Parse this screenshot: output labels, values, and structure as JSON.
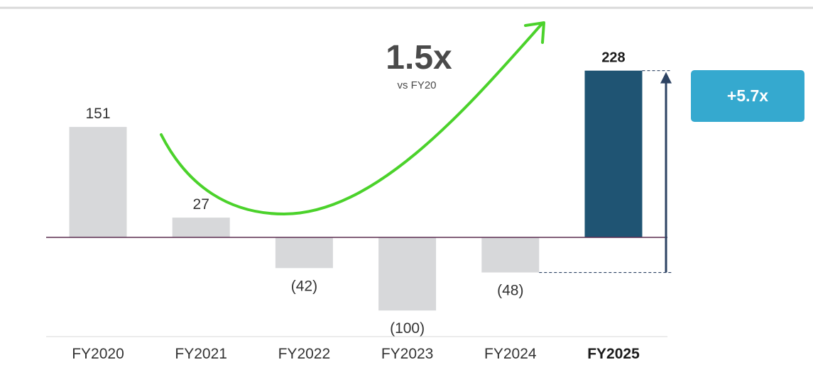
{
  "chart_data": {
    "type": "bar",
    "categories": [
      "FY2020",
      "FY2021",
      "FY2022",
      "FY2023",
      "FY2024",
      "FY2025"
    ],
    "values": [
      151,
      27,
      -42,
      -100,
      -48,
      228
    ],
    "value_labels": [
      "151",
      "27",
      "(42)",
      "(100)",
      "(48)",
      "228"
    ],
    "highlight_index": 5,
    "ylim": [
      -120,
      250
    ],
    "grid": false,
    "colors": {
      "bar": "#d7d8da",
      "highlight_bar": "#1f5473",
      "baseline": "#5a2b4f",
      "trend_arrow": "#4bd22b",
      "range_arrow": "#2d4363",
      "badge": "#35a9cf",
      "top_rule": "#d9d9d9"
    },
    "annotations": {
      "growth_multiple": "1.5x",
      "growth_caption": "vs FY20",
      "range_multiple": "+5.7x"
    }
  }
}
